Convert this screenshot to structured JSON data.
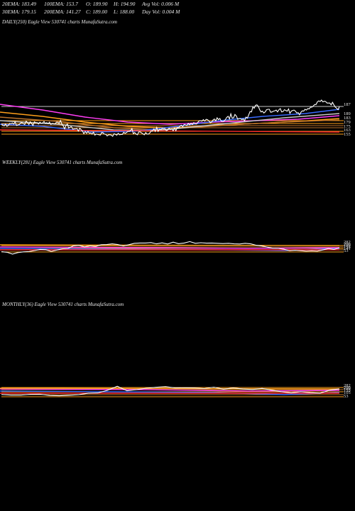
{
  "header": {
    "row1": [
      {
        "label": "20EMA: 183.49"
      },
      {
        "label": "100EMA: 153.7"
      },
      {
        "label": "O: 189.90"
      },
      {
        "label": "H: 194.90"
      },
      {
        "label": "Avg Vol: 0.006  M"
      }
    ],
    "row2": [
      {
        "label": "30EMA: 179.15"
      },
      {
        "label": "200EMA: 141.27"
      },
      {
        "label": "C: 189.00"
      },
      {
        "label": "L: 188.00"
      },
      {
        "label": "Day Vol: 0.004  M"
      }
    ]
  },
  "colors": {
    "background": "#000000",
    "price": "#ffffff",
    "ema_fast": "#3a6bff",
    "ema_slow": "#ff3df5",
    "ema_gold": "#ff9f1a",
    "ema_brown": "#b8702a",
    "ema_grey": "#c8c8c8",
    "ema_red": "#ff2a2a"
  },
  "chart_data": [
    {
      "type": "line",
      "title": "DAILY(250) Eagle  View  530741 charts MunafaSutra.com",
      "tick_labels": [
        "187",
        "189",
        "183",
        "179",
        "175",
        "163",
        "155"
      ],
      "series": [
        {
          "values": [
            0.33,
            0.3,
            0.28,
            0.33,
            0.27,
            0.29,
            0.35,
            0.34,
            0.36,
            0.33,
            0.39,
            0.29,
            0.31,
            0.32,
            0.36,
            0.37,
            0.34,
            0.32,
            0.41,
            0.37,
            0.32,
            0.39,
            0.34,
            0.29,
            0.39,
            0.37,
            0.37,
            0.33,
            0.38,
            0.35,
            0.36,
            0.4,
            0.35,
            0.37,
            0.34,
            0.38,
            0.32,
            0.35,
            0.34,
            0.33,
            0.38,
            0.38,
            0.35,
            0.43,
            0.33,
            0.28,
            0.2,
            0.29,
            0.33,
            0.22,
            0.25,
            0.26,
            0.19,
            0.2,
            0.2,
            0.21,
            0.14,
            0.22,
            0.18,
            0.14,
            0.07,
            0.13,
            0.08,
            0.13,
            0.08,
            0.09,
            0.06,
            0.11,
            0.03,
            0.06,
            0.05,
            0.04,
            0.03,
            0.1,
            0.09,
            0.06,
            0.05,
            0.01,
            0.04,
            0.04,
            0.03,
            0.0,
            0.07,
            0.05,
            0.03,
            0.08,
            0.04,
            0.05,
            0.05,
            0.11,
            0.08,
            0.1,
            0.13,
            0.13,
            0.15,
            0.21,
            0.07,
            0.1,
            0.06,
            0.04,
            0.12,
            0.12,
            0.09,
            0.07,
            0.04,
            0.1,
            0.06,
            0.06,
            0.09,
            0.14,
            0.14,
            0.2,
            0.13,
            0.24,
            0.13,
            0.19,
            0.18,
            0.21,
            0.2,
            0.21,
            0.15,
            0.17,
            0.22,
            0.18,
            0.2,
            0.15,
            0.22,
            0.15,
            0.24,
            0.23,
            0.28,
            0.3,
            0.26,
            0.32,
            0.31,
            0.29,
            0.35,
            0.31,
            0.35,
            0.32,
            0.37,
            0.34,
            0.33,
            0.38,
            0.42,
            0.42,
            0.41,
            0.45,
            0.41,
            0.46,
            0.45,
            0.42,
            0.37,
            0.38,
            0.44,
            0.47,
            0.42,
            0.5,
            0.45,
            0.48,
            0.41,
            0.4,
            0.41,
            0.45,
            0.51,
            0.54,
            0.47,
            0.61,
            0.49,
            0.5,
            0.59,
            0.55,
            0.46,
            0.48,
            0.48,
            0.45,
            0.47,
            0.42,
            0.52,
            0.49,
            0.58,
            0.67,
            0.66,
            0.79,
            0.76,
            0.84,
            0.85,
            0.81,
            0.72,
            0.66,
            0.68,
            0.63,
            0.66,
            0.72,
            0.73,
            0.73,
            0.65,
            0.66,
            0.68,
            0.69,
            0.71,
            0.66,
            0.72,
            0.75,
            0.66,
            0.67,
            0.72,
            0.7,
            0.68,
            0.74,
            0.62,
            0.68,
            0.7,
            0.71,
            0.68,
            0.63,
            0.64,
            0.58,
            0.65,
            0.69,
            0.68,
            0.73,
            0.71,
            0.75,
            0.74,
            0.79,
            0.79,
            0.82,
            0.86,
            0.86,
            0.93,
            0.96,
            0.94,
            0.98,
            0.93,
            0.95,
            0.94,
            0.9,
            0.9,
            0.9,
            0.85,
            0.92,
            0.85,
            0.79,
            0.76,
            0.72,
            0.8
          ]
        }
      ]
    },
    {
      "type": "line",
      "title": "WEEKLY(281) Eagle  View  530741 charts MunafaSutra.com",
      "tick_labels": [
        "282",
        "200",
        "189",
        "155",
        "141",
        "53"
      ],
      "series": [
        {
          "values": [
            0.17,
            0.13,
            0.0,
            0.11,
            0.16,
            0.18,
            0.25,
            0.33,
            0.31,
            0.19,
            0.28,
            0.37,
            0.4,
            0.58,
            0.61,
            0.51,
            0.58,
            0.54,
            0.66,
            0.67,
            0.72,
            0.67,
            0.57,
            0.66,
            0.76,
            0.78,
            0.78,
            0.81,
            0.72,
            0.79,
            0.71,
            0.84,
            0.73,
            0.78,
            0.88,
            0.76,
            0.8,
            0.77,
            0.78,
            0.76,
            0.74,
            0.76,
            0.72,
            0.71,
            0.76,
            0.72,
            0.62,
            0.57,
            0.49,
            0.41,
            0.4,
            0.34,
            0.24,
            0.27,
            0.24,
            0.21,
            0.23,
            0.21,
            0.29,
            0.39,
            0.33,
            0.43
          ]
        }
      ]
    },
    {
      "type": "line",
      "title": "MONTHLY(36) Eagle  View  530741 charts MunafaSutra.com",
      "tick_labels": [
        "282",
        "200",
        "189",
        "155",
        "105",
        "53"
      ],
      "series": [
        {
          "values": [
            0.28,
            0.24,
            0.24,
            0.29,
            0.3,
            0.22,
            0.2,
            0.23,
            0.27,
            0.37,
            0.38,
            0.55,
            0.81,
            0.52,
            0.59,
            0.68,
            0.74,
            0.78,
            0.7,
            0.71,
            0.7,
            0.66,
            0.75,
            0.62,
            0.7,
            0.63,
            0.6,
            0.67,
            0.56,
            0.46,
            0.38,
            0.46,
            0.4,
            0.37,
            0.56,
            0.64
          ]
        }
      ]
    }
  ]
}
